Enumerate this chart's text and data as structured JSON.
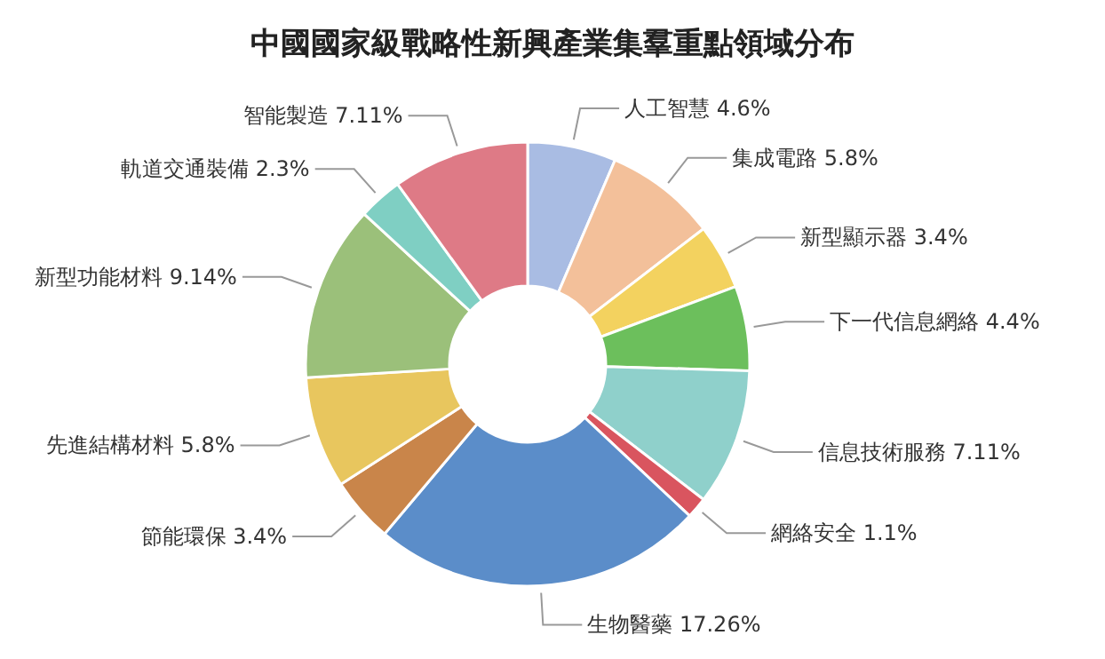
{
  "chart_data": {
    "type": "donut",
    "title": "中國國家級戰略性新興產業集羣重點領域分布",
    "categories": [
      "人工智慧",
      "集成電路",
      "新型顯示器",
      "下一代信息網絡",
      "信息技術服務",
      "網絡安全",
      "生物醫藥",
      "節能環保",
      "先進結構材料",
      "新型功能材料",
      "軌道交通裝備",
      "智能製造"
    ],
    "values": [
      4.6,
      5.8,
      3.4,
      4.4,
      7.11,
      1.1,
      17.26,
      3.4,
      5.8,
      9.14,
      2.3,
      7.11
    ],
    "value_labels": [
      "4.6%",
      "5.8%",
      "3.4%",
      "4.4%",
      "7.11%",
      "1.1%",
      "17.26%",
      "3.4%",
      "5.8%",
      "9.14%",
      "2.3%",
      "7.11%"
    ],
    "colors": [
      "#a9bce3",
      "#f3c09a",
      "#f3d25f",
      "#6cbf5c",
      "#8fd0cb",
      "#d9555f",
      "#5b8dc9",
      "#c9854a",
      "#e8c65e",
      "#9bc07a",
      "#7fcfc3",
      "#de7a86"
    ]
  }
}
